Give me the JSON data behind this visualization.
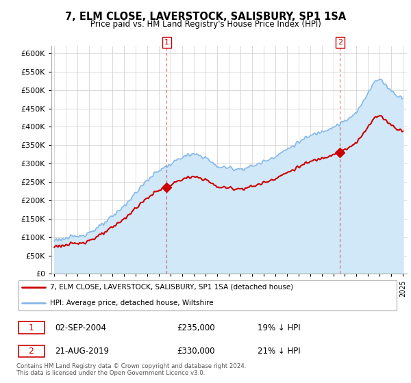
{
  "title": "7, ELM CLOSE, LAVERSTOCK, SALISBURY, SP1 1SA",
  "subtitle": "Price paid vs. HM Land Registry's House Price Index (HPI)",
  "ylim": [
    0,
    620000
  ],
  "yticks": [
    0,
    50000,
    100000,
    150000,
    200000,
    250000,
    300000,
    350000,
    400000,
    450000,
    500000,
    550000,
    600000
  ],
  "hpi_color": "#85b8e8",
  "hpi_fill_color": "#d0e8f8",
  "sold_color": "#cc0000",
  "legend_line1": "7, ELM CLOSE, LAVERSTOCK, SALISBURY, SP1 1SA (detached house)",
  "legend_line2": "HPI: Average price, detached house, Wiltshire",
  "footer": "Contains HM Land Registry data © Crown copyright and database right 2024.\nThis data is licensed under the Open Government Licence v3.0.",
  "grid_color": "#cccccc",
  "t1_idx": 116,
  "t2_idx": 295,
  "t1_val": 235000,
  "t2_val": 330000,
  "n_months": 361,
  "start_year": 1995,
  "end_year": 2025
}
